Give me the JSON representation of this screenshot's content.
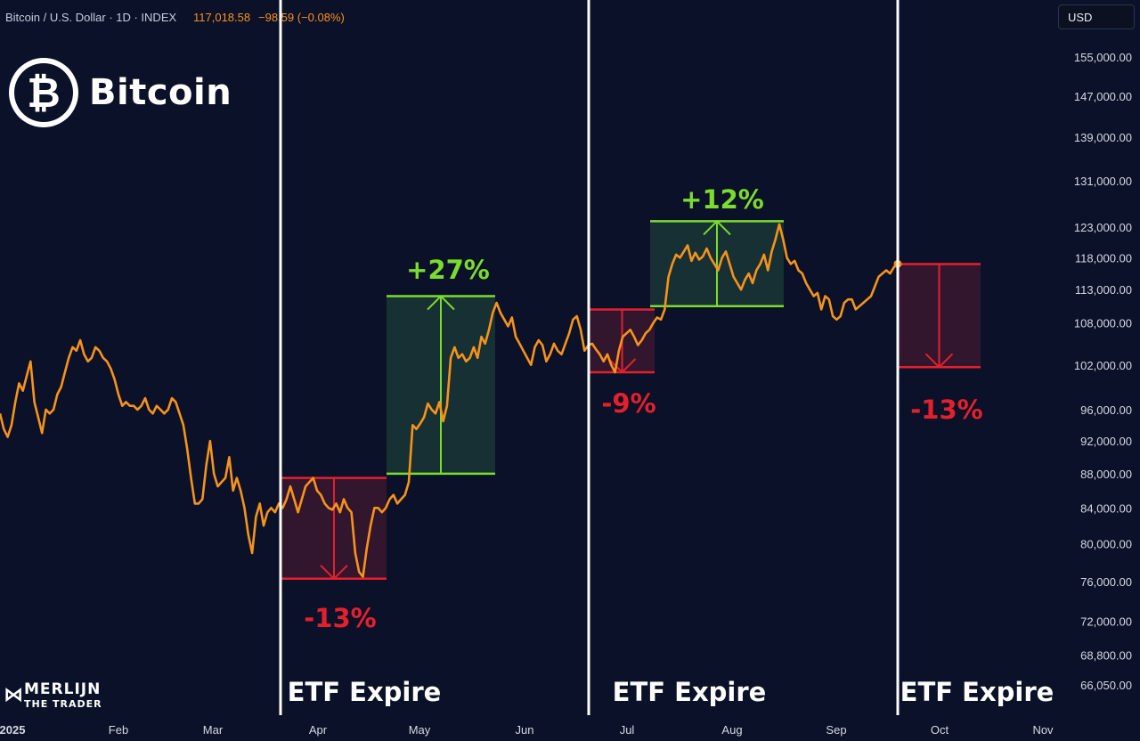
{
  "header": {
    "symbol": "Bitcoin / U.S. Dollar · 1D · INDEX",
    "last": "117,018.58",
    "change": "−98.59 (−0.08%)"
  },
  "currency_button": "USD",
  "brand": {
    "logo_glyph": "₿",
    "name": "Bitcoin"
  },
  "watermark": {
    "line1": "MERLIJN",
    "line2": "THE TRADER"
  },
  "colors": {
    "background": "#0a1128",
    "price": "#f7931a",
    "up": "#7bdc2e",
    "down": "#e5202d",
    "vline": "#ffffff"
  },
  "chart_data": {
    "type": "line",
    "x_axis": {
      "labels": [
        "2025",
        "Feb",
        "Mar",
        "Apr",
        "May",
        "Jun",
        "Jul",
        "Aug",
        "Sep",
        "Oct",
        "Nov"
      ]
    },
    "y_axis": {
      "scale": "log",
      "ticks": [
        "155,000.00",
        "147,000.00",
        "139,000.00",
        "131,000.00",
        "123,000.00",
        "118,000.00",
        "113,000.00",
        "108,000.00",
        "102,000.00",
        "96,000.00",
        "92,000.00",
        "88,000.00",
        "84,000.00",
        "80,000.00",
        "76,000.00",
        "72,000.00",
        "68,800.00",
        "66,050.00"
      ]
    },
    "series": [
      {
        "values": [
          95500,
          93500,
          92500,
          94000,
          97000,
          99500,
          98500,
          100500,
          102500,
          97000,
          95000,
          93000,
          96000,
          95500,
          96000,
          98000,
          99000,
          101000,
          103000,
          104500,
          104000,
          105500,
          103500,
          102500,
          103000,
          104500,
          104000,
          103000,
          102500,
          101500,
          100000,
          98000,
          96500,
          97000,
          96500,
          96500,
          96000,
          96500,
          97500,
          96000,
          95500,
          96500,
          96000,
          95500,
          96000,
          97500,
          97000,
          95500,
          94000,
          91000,
          87500,
          84500,
          84500,
          85000,
          89000,
          92000,
          88000,
          86500,
          87000,
          87500,
          90000,
          86000,
          87500,
          86000,
          84000,
          81000,
          79000,
          83000,
          84500,
          82000,
          83500,
          84000,
          83500,
          84500,
          84000,
          85000,
          86500,
          85000,
          83500,
          85000,
          86500,
          87000,
          87500,
          86000,
          85500,
          84500,
          84000,
          83800,
          84500,
          83500,
          85000,
          84000,
          83500,
          79000,
          77000,
          76500,
          79500,
          82000,
          84000,
          84000,
          83500,
          84000,
          85000,
          85500,
          84500,
          85000,
          85500,
          87000,
          94000,
          93500,
          94200,
          95000,
          96800,
          96000,
          95500,
          97000,
          94500,
          96500,
          103000,
          104500,
          103000,
          103500,
          102500,
          103000,
          104500,
          103000,
          106000,
          105000,
          107000,
          109500,
          111000,
          109500,
          108500,
          107500,
          108800,
          106000,
          105000,
          104000,
          103000,
          102000,
          104500,
          105500,
          104800,
          102500,
          103500,
          105000,
          104000,
          103500,
          105000,
          106500,
          108500,
          109000,
          107000,
          104000,
          104800,
          105000,
          104200,
          103500,
          102500,
          103500,
          102000,
          101000,
          104000,
          106000,
          106500,
          107000,
          106000,
          104800,
          105500,
          106500,
          107000,
          108000,
          108800,
          108500,
          110000,
          115000,
          117000,
          118500,
          118000,
          119000,
          120000,
          117500,
          118800,
          117700,
          118200,
          119500,
          118000,
          117000,
          116000,
          118000,
          119000,
          117000,
          115000,
          114000,
          113000,
          114500,
          115500,
          114000,
          116000,
          117000,
          118500,
          116000,
          119000,
          121000,
          123500,
          121000,
          118000,
          117000,
          117500,
          116000,
          115500,
          114000,
          113000,
          112000,
          112500,
          110000,
          112000,
          111500,
          109000,
          108500,
          109000,
          111000,
          111500,
          111500,
          110000,
          110500,
          111000,
          111500,
          112000,
          113500,
          115000,
          115500,
          116000,
          115500,
          116500,
          117018
        ]
      }
    ],
    "annotations": [
      {
        "type": "vertical-line",
        "label": "ETF Expire"
      },
      {
        "type": "vertical-line",
        "label": "ETF Expire"
      },
      {
        "type": "vertical-line",
        "label": "ETF Expire"
      },
      {
        "type": "range-box",
        "direction": "down",
        "label": "-13%",
        "from": 87500,
        "to": 76300
      },
      {
        "type": "range-box",
        "direction": "up",
        "label": "+27%",
        "from": 88000,
        "to": 112000
      },
      {
        "type": "range-box",
        "direction": "down",
        "label": "-9%",
        "from": 110000,
        "to": 101000
      },
      {
        "type": "range-box",
        "direction": "up",
        "label": "+12%",
        "from": 110500,
        "to": 124000
      },
      {
        "type": "range-box",
        "direction": "down",
        "label": "-13%",
        "from": 117000,
        "to": 101700
      }
    ]
  }
}
